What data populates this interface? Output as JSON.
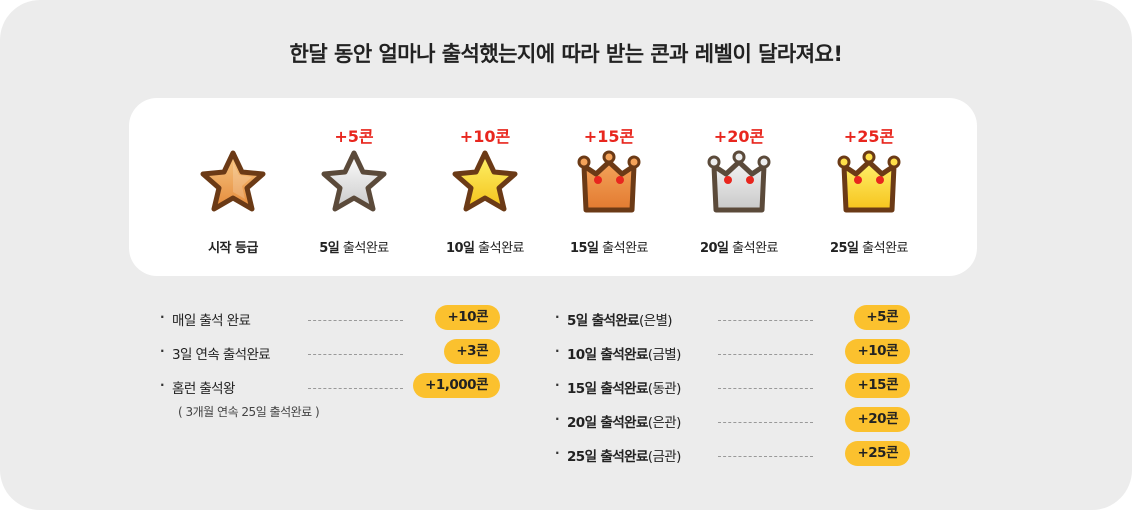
{
  "title": "한달 동안 얼마나 출석했는지에 따라 받는 콘과 레벨이 달라져요!",
  "levels": [
    {
      "reward": "",
      "label_bold": "시작 등급",
      "label_rest": "",
      "icon": "star-bronze-icon"
    },
    {
      "reward": "+5콘",
      "label_bold": "5일",
      "label_rest": " 출석완료",
      "icon": "star-silver-icon"
    },
    {
      "reward": "+10콘",
      "label_bold": "10일",
      "label_rest": " 출석완료",
      "icon": "star-gold-icon"
    },
    {
      "reward": "+15콘",
      "label_bold": "15일",
      "label_rest": " 출석완료",
      "icon": "crown-bronze-icon"
    },
    {
      "reward": "+20콘",
      "label_bold": "20일",
      "label_rest": " 출석완료",
      "icon": "crown-silver-icon"
    },
    {
      "reward": "+25콘",
      "label_bold": "25일",
      "label_rest": " 출석완료",
      "icon": "crown-gold-icon"
    }
  ],
  "left_rewards": [
    {
      "bullet": "·",
      "name": "매일 출석 완료",
      "badge": "+10콘"
    },
    {
      "bullet": "·",
      "name": "3일 연속 출석완료",
      "badge": "+3콘"
    },
    {
      "bullet": "·",
      "name": "홈런 출석왕",
      "badge": "+1,000콘",
      "sub": "( 3개월 연속 25일 출석완료 )"
    }
  ],
  "right_rewards": [
    {
      "bullet": "·",
      "name": "5일 출석완료",
      "paren": "(은별)",
      "badge": "+5콘"
    },
    {
      "bullet": "·",
      "name": "10일 출석완료",
      "paren": "(금별)",
      "badge": "+10콘"
    },
    {
      "bullet": "·",
      "name": "15일 출석완료",
      "paren": "(동관)",
      "badge": "+15콘"
    },
    {
      "bullet": "·",
      "name": "20일 출석완료",
      "paren": "(은관)",
      "badge": "+20콘"
    },
    {
      "bullet": "·",
      "name": "25일 출석완료",
      "paren": "(금관)",
      "badge": "+25콘"
    }
  ],
  "colors": {
    "reward_red": "#e8261e",
    "badge_yellow": "#fbc12e",
    "panel_gray": "#ececec"
  }
}
